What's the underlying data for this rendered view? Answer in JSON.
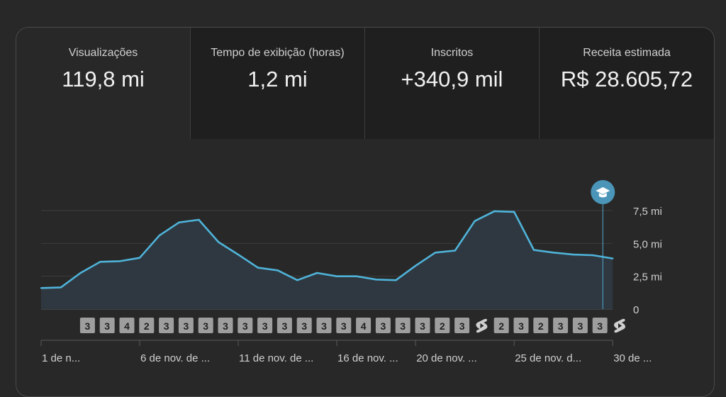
{
  "metrics": [
    {
      "label": "Visualizações",
      "value": "119,8 mi",
      "selected": true
    },
    {
      "label": "Tempo de exibição (horas)",
      "value": "1,2 mi",
      "selected": false
    },
    {
      "label": "Inscritos",
      "value": "+340,9 mil",
      "selected": false
    },
    {
      "label": "Receita estimada",
      "value": "R$ 28.605,72",
      "selected": false
    }
  ],
  "chart_data": {
    "type": "area",
    "series": [
      {
        "values": [
          1.6,
          1.65,
          2.75,
          3.6,
          3.65,
          3.9,
          5.6,
          6.6,
          6.8,
          5.1,
          4.15,
          3.15,
          2.95,
          2.2,
          2.75,
          2.5,
          2.5,
          2.25,
          2.2,
          3.3,
          4.3,
          4.45,
          6.7,
          7.45,
          7.4,
          4.5,
          4.3,
          4.15,
          4.1,
          3.85
        ]
      }
    ],
    "ylim": [
      0,
      7.5
    ],
    "yticks": [
      {
        "value": 0,
        "label": "0"
      },
      {
        "value": 2.5,
        "label": "2,5 mi"
      },
      {
        "value": 5.0,
        "label": "5,0 mi"
      },
      {
        "value": 7.5,
        "label": "7,5 mi"
      }
    ],
    "x_tick_labels": [
      {
        "index": 0,
        "label": "1 de n..."
      },
      {
        "index": 5,
        "label": "6 de nov. de ..."
      },
      {
        "index": 10,
        "label": "11 de nov. de ..."
      },
      {
        "index": 15,
        "label": "16 de nov. ..."
      },
      {
        "index": 19,
        "label": "20 de nov. ..."
      },
      {
        "index": 24,
        "label": "25 de nov. d..."
      },
      {
        "index": 29,
        "label": "30 de ..."
      }
    ],
    "upload_badges": [
      {
        "index": 3,
        "kind": "count",
        "text": "3"
      },
      {
        "index": 4,
        "kind": "count",
        "text": "3"
      },
      {
        "index": 5,
        "kind": "count",
        "text": "4"
      },
      {
        "index": 6,
        "kind": "count",
        "text": "2"
      },
      {
        "index": 7,
        "kind": "count",
        "text": "3"
      },
      {
        "index": 8,
        "kind": "count",
        "text": "3"
      },
      {
        "index": 9,
        "kind": "count",
        "text": "3"
      },
      {
        "index": 10,
        "kind": "count",
        "text": "3"
      },
      {
        "index": 11,
        "kind": "count",
        "text": "3"
      },
      {
        "index": 12,
        "kind": "count",
        "text": "3"
      },
      {
        "index": 13,
        "kind": "count",
        "text": "3"
      },
      {
        "index": 14,
        "kind": "count",
        "text": "3"
      },
      {
        "index": 15,
        "kind": "count",
        "text": "3"
      },
      {
        "index": 16,
        "kind": "count",
        "text": "3"
      },
      {
        "index": 17,
        "kind": "count",
        "text": "4"
      },
      {
        "index": 18,
        "kind": "count",
        "text": "3"
      },
      {
        "index": 19,
        "kind": "count",
        "text": "3"
      },
      {
        "index": 20,
        "kind": "count",
        "text": "3"
      },
      {
        "index": 21,
        "kind": "count",
        "text": "2"
      },
      {
        "index": 22,
        "kind": "count",
        "text": "3"
      },
      {
        "index": 23,
        "kind": "shorts"
      },
      {
        "index": 24,
        "kind": "count",
        "text": "2"
      },
      {
        "index": 25,
        "kind": "count",
        "text": "3"
      },
      {
        "index": 26,
        "kind": "count",
        "text": "2"
      },
      {
        "index": 27,
        "kind": "count",
        "text": "3"
      },
      {
        "index": 28,
        "kind": "count",
        "text": "3"
      },
      {
        "index": 29,
        "kind": "count",
        "text": "3"
      },
      {
        "index": 30,
        "kind": "shorts"
      }
    ],
    "marker": {
      "index": 28.5,
      "icon": "graduation-cap-icon"
    },
    "colors": {
      "line": "#4fb3d9",
      "fill": "#2f3840",
      "badge": "#9e9e9e",
      "badge_text": "#222222",
      "marker": "#4a95b8"
    }
  }
}
